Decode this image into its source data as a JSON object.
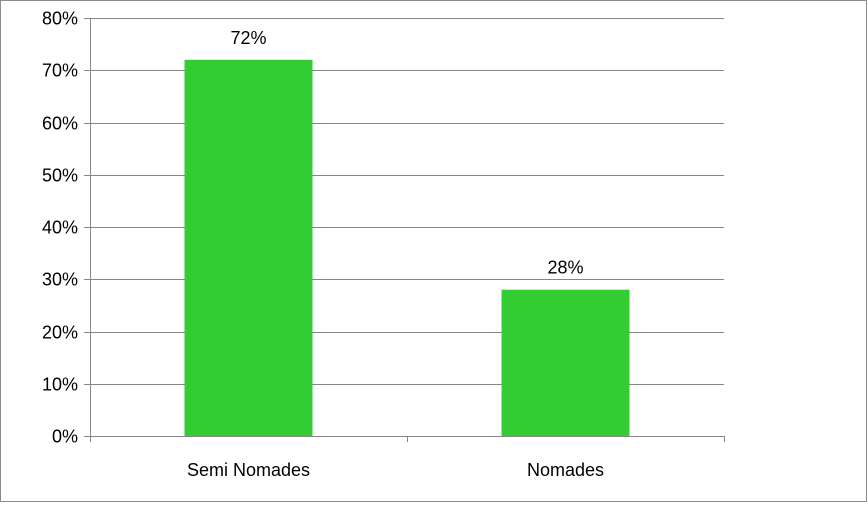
{
  "chart_data": {
    "type": "bar",
    "categories": [
      "Semi Nomades",
      "Nomades"
    ],
    "values": [
      72,
      28
    ],
    "data_labels": [
      "72%",
      "28%"
    ],
    "ylim": [
      0,
      80
    ],
    "yticks": [
      0,
      10,
      20,
      30,
      40,
      50,
      60,
      70,
      80
    ],
    "ytick_labels": [
      "0%",
      "10%",
      "20%",
      "30%",
      "40%",
      "50%",
      "60%",
      "70%",
      "80%"
    ],
    "grid": true,
    "legend": "none",
    "bar_color": "#33cc33",
    "gridline_color": "#868686",
    "text_color": "#000000"
  }
}
